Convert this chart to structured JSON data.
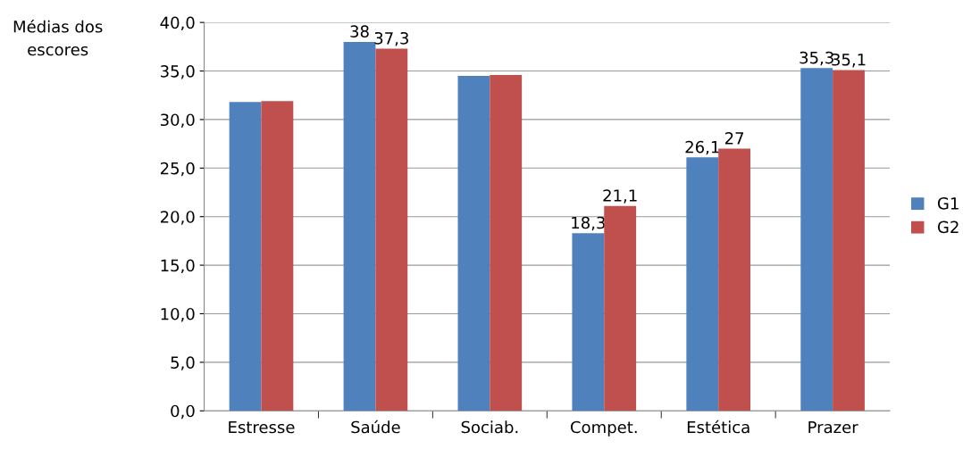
{
  "chart_data": {
    "type": "bar",
    "ylabel": "Médias dos\nescores",
    "categories": [
      "Estresse",
      "Saúde",
      "Sociab.",
      "Compet.",
      "Estética",
      "Prazer"
    ],
    "series": [
      {
        "name": "G1",
        "color": "#4f81bd",
        "values": [
          31.8,
          38,
          34.5,
          18.3,
          26.1,
          35.3
        ],
        "value_labels": [
          null,
          "38",
          null,
          "18,3",
          "26,1",
          "35,3"
        ]
      },
      {
        "name": "G2",
        "color": "#c0504d",
        "values": [
          31.9,
          37.3,
          34.6,
          21.1,
          27,
          35.1
        ],
        "value_labels": [
          null,
          "37,3",
          null,
          "21,1",
          "27",
          "35,1"
        ]
      }
    ],
    "ylim": [
      0,
      40
    ],
    "yticks": [
      {
        "value": 0,
        "label": "0,0"
      },
      {
        "value": 5,
        "label": "5,0"
      },
      {
        "value": 10,
        "label": "10,0"
      },
      {
        "value": 15,
        "label": "15,0"
      },
      {
        "value": 20,
        "label": "20,0"
      },
      {
        "value": 25,
        "label": "25,0"
      },
      {
        "value": 30,
        "label": "30,0"
      },
      {
        "value": 35,
        "label": "35,0"
      },
      {
        "value": 40,
        "label": "40,0"
      }
    ],
    "grid": "y",
    "legend": "right"
  }
}
